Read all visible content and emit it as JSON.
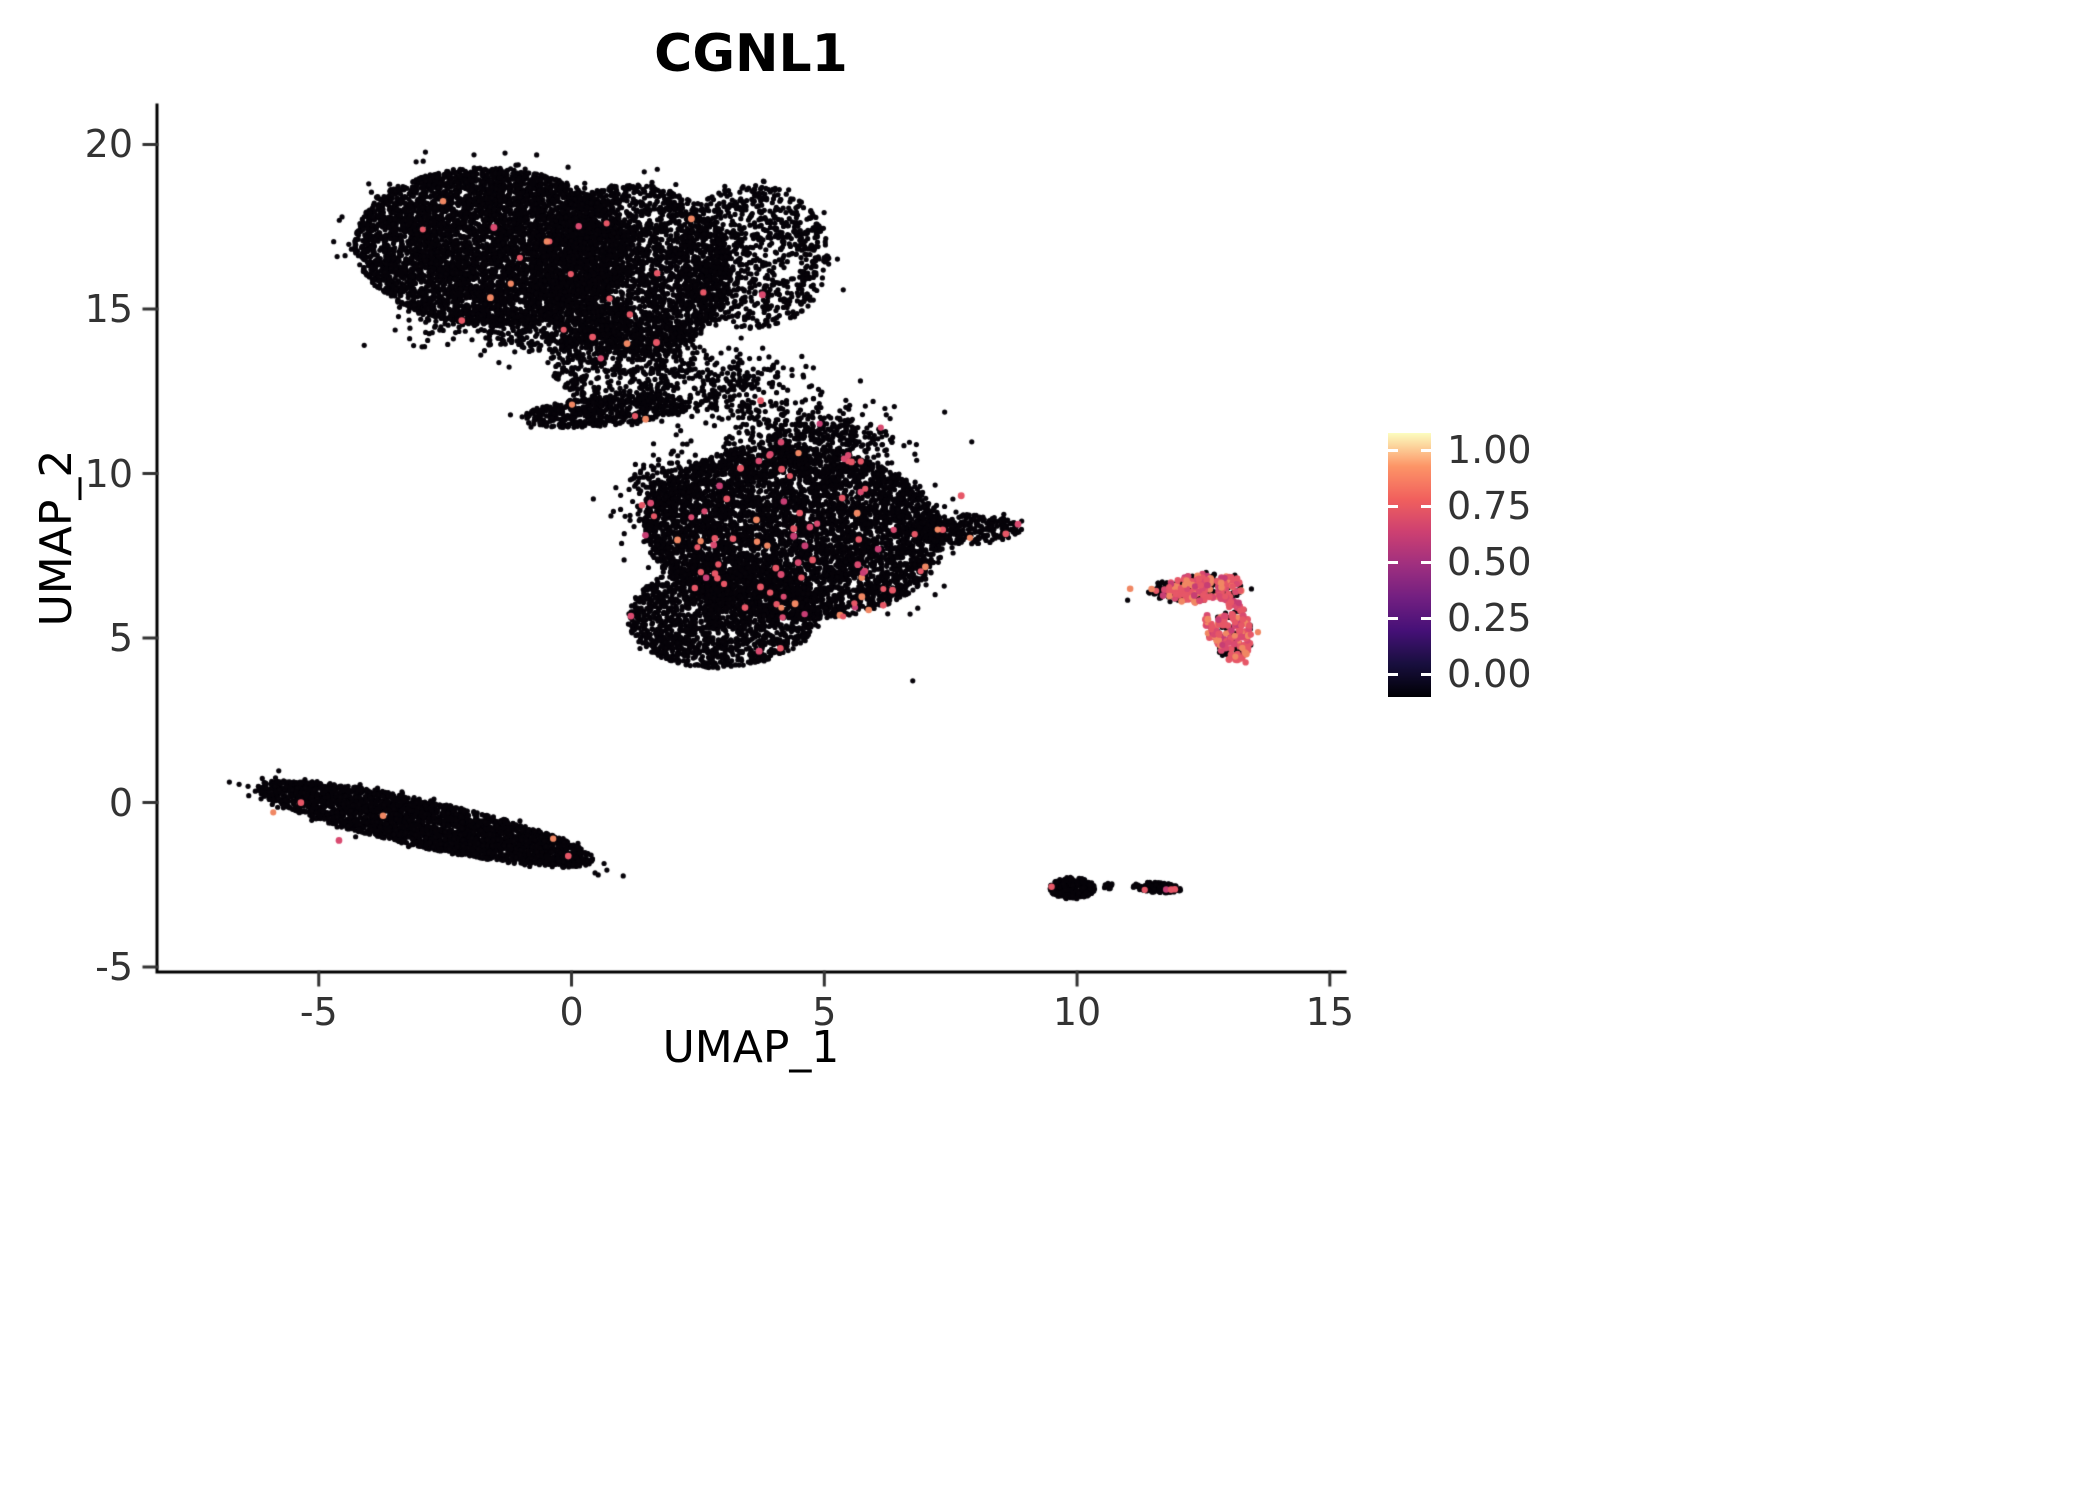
{
  "title": "CGNL1",
  "chart_data": {
    "type": "scatter",
    "title": "CGNL1",
    "xlabel": "UMAP_1",
    "ylabel": "UMAP_2",
    "xlim": [
      -8.2,
      15.3
    ],
    "ylim": [
      -5.15,
      21.2
    ],
    "xticks": [
      -5,
      0,
      5,
      10,
      15
    ],
    "yticks": [
      -5,
      0,
      5,
      10,
      15,
      20
    ],
    "grid": false,
    "background": "#ffffff",
    "point_color_base": "#060309",
    "expression_palette": [
      "#e65767",
      "#d94a70",
      "#f08763",
      "#c73e74"
    ],
    "legend": {
      "position": "right",
      "tick_labels": [
        "1.00",
        "0.75",
        "0.50",
        "0.25",
        "0.00"
      ],
      "gradient_stops_bottom_to_top": [
        "#000004",
        "#180f3e",
        "#451077",
        "#721f81",
        "#9f2f7f",
        "#cd4071",
        "#f1605d",
        "#fd9567",
        "#fcfdbf"
      ]
    },
    "clusters": [
      {
        "name": "upper-left-main",
        "cx": -1.6,
        "cy": 16.9,
        "rx": 2.7,
        "ry": 2.4,
        "rot": -10,
        "n": 5200,
        "shape": "disk",
        "red_frac": 0.0015
      },
      {
        "name": "upper-left-right-lobe",
        "cx": 1.2,
        "cy": 16.2,
        "rx": 2.0,
        "ry": 2.6,
        "rot": 0,
        "n": 2600,
        "shape": "disk",
        "red_frac": 0.002
      },
      {
        "name": "upper-right-extension",
        "cx": 3.6,
        "cy": 16.6,
        "rx": 1.5,
        "ry": 2.2,
        "rot": 0,
        "n": 900,
        "shape": "disk",
        "red_frac": 0.002
      },
      {
        "name": "upper-tail",
        "cx": 1.0,
        "cy": 13.6,
        "rx": 1.5,
        "ry": 1.5,
        "rot": 0,
        "n": 650,
        "shape": "disk",
        "red_frac": 0.003
      },
      {
        "name": "upper-wedge",
        "cx": 0.7,
        "cy": 11.9,
        "rx": 1.7,
        "ry": 0.45,
        "rot": 8,
        "n": 550,
        "shape": "disk",
        "red_frac": 0.002
      },
      {
        "name": "bridge-sparse",
        "cx": 3.2,
        "cy": 12.5,
        "rx": 1.2,
        "ry": 1.2,
        "rot": 0,
        "n": 260,
        "shape": "gauss",
        "red_frac": 0.004
      },
      {
        "name": "upper-under-halo",
        "cx": -0.6,
        "cy": 14.3,
        "rx": 2.4,
        "ry": 0.8,
        "rot": -5,
        "n": 330,
        "shape": "gauss",
        "red_frac": 0.003
      },
      {
        "name": "center-main",
        "cx": 4.4,
        "cy": 8.2,
        "rx": 3.0,
        "ry": 2.6,
        "rot": -15,
        "n": 5200,
        "shape": "disk",
        "red_frac": 0.011
      },
      {
        "name": "center-lower-lobe",
        "cx": 3.0,
        "cy": 5.7,
        "rx": 1.9,
        "ry": 1.6,
        "rot": 10,
        "n": 1700,
        "shape": "disk",
        "red_frac": 0.01
      },
      {
        "name": "center-right-arm",
        "cx": 7.8,
        "cy": 8.3,
        "rx": 1.1,
        "ry": 0.45,
        "rot": 3,
        "n": 320,
        "shape": "disk",
        "red_frac": 0.012
      },
      {
        "name": "center-top-sparse",
        "cx": 4.8,
        "cy": 11.0,
        "rx": 1.6,
        "ry": 1.1,
        "rot": 0,
        "n": 480,
        "shape": "gauss",
        "red_frac": 0.008
      },
      {
        "name": "center-left-sparse",
        "cx": 1.9,
        "cy": 9.5,
        "rx": 0.9,
        "ry": 1.2,
        "rot": 0,
        "n": 260,
        "shape": "gauss",
        "red_frac": 0.008
      },
      {
        "name": "lower-left-streak",
        "cx": -2.9,
        "cy": -0.65,
        "rx": 3.5,
        "ry": 0.7,
        "rot": -19,
        "n": 3000,
        "shape": "disk",
        "red_frac": 0.0012
      },
      {
        "name": "right-island-top",
        "cx": 12.5,
        "cy": 6.5,
        "rx": 0.8,
        "ry": 0.45,
        "rot": 5,
        "n": 300,
        "shape": "disk",
        "red_frac": 0.45,
        "hole": [
          12.72,
          5.95,
          0.28
        ]
      },
      {
        "name": "right-island-bottom",
        "cx": 13.0,
        "cy": 5.3,
        "rx": 0.45,
        "ry": 1.0,
        "rot": 8,
        "n": 280,
        "shape": "disk",
        "red_frac": 0.55,
        "hole": [
          12.72,
          5.95,
          0.28
        ]
      },
      {
        "name": "right-island-west",
        "cx": 11.85,
        "cy": 6.45,
        "rx": 0.45,
        "ry": 0.28,
        "rot": 0,
        "n": 70,
        "shape": "disk",
        "red_frac": 0.15
      },
      {
        "name": "bottom-island-left",
        "cx": 9.9,
        "cy": -2.6,
        "rx": 0.45,
        "ry": 0.33,
        "rot": 0,
        "n": 240,
        "shape": "disk",
        "red_frac": 0.008
      },
      {
        "name": "bottom-island-right",
        "cx": 11.6,
        "cy": -2.58,
        "rx": 0.5,
        "ry": 0.16,
        "rot": -5,
        "n": 150,
        "shape": "disk",
        "red_frac": 0.03
      },
      {
        "name": "bottom-island-tiny",
        "cx": 10.62,
        "cy": -2.55,
        "rx": 0.12,
        "ry": 0.1,
        "rot": 0,
        "n": 18,
        "shape": "disk",
        "red_frac": 0
      }
    ],
    "extra_points": [
      [
        6.75,
        3.7
      ],
      [
        11.0,
        6.15
      ],
      [
        8.9,
        8.3
      ]
    ],
    "extra_points_expressing": [
      [
        11.05,
        6.5
      ],
      [
        -5.9,
        -0.3
      ],
      [
        -4.6,
        -1.15
      ]
    ]
  }
}
